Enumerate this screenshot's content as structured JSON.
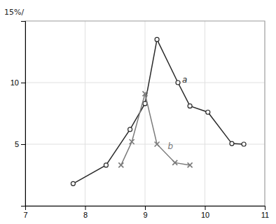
{
  "chart_data": {
    "type": "line",
    "series": [
      {
        "x": [
          7.8,
          8.35,
          8.75,
          9.0,
          9.2,
          9.55,
          9.75,
          10.05,
          10.45,
          10.65
        ],
        "values": [
          1.8,
          3.3,
          6.2,
          8.3,
          13.5,
          10.0,
          8.1,
          7.6,
          5.05,
          5.0
        ],
        "color": "#2a2a2a",
        "marker": "circle"
      },
      {
        "x": [
          8.6,
          8.78,
          9.0,
          9.2,
          9.5,
          9.75
        ],
        "values": [
          3.3,
          5.2,
          9.1,
          5.0,
          3.5,
          3.3
        ],
        "color": "#7a7a7a",
        "marker": "x"
      }
    ],
    "annotations": [
      {
        "text": "a",
        "x": 9.62,
        "y": 10.0
      },
      {
        "text": "b",
        "x": 9.38,
        "y": 4.6
      }
    ],
    "ylabel": "15%/",
    "xlim": [
      7,
      11
    ],
    "ylim": [
      0,
      15
    ],
    "xticks": [
      7,
      8,
      9,
      10,
      11
    ],
    "yticks": [
      5,
      10
    ],
    "grid": true
  }
}
